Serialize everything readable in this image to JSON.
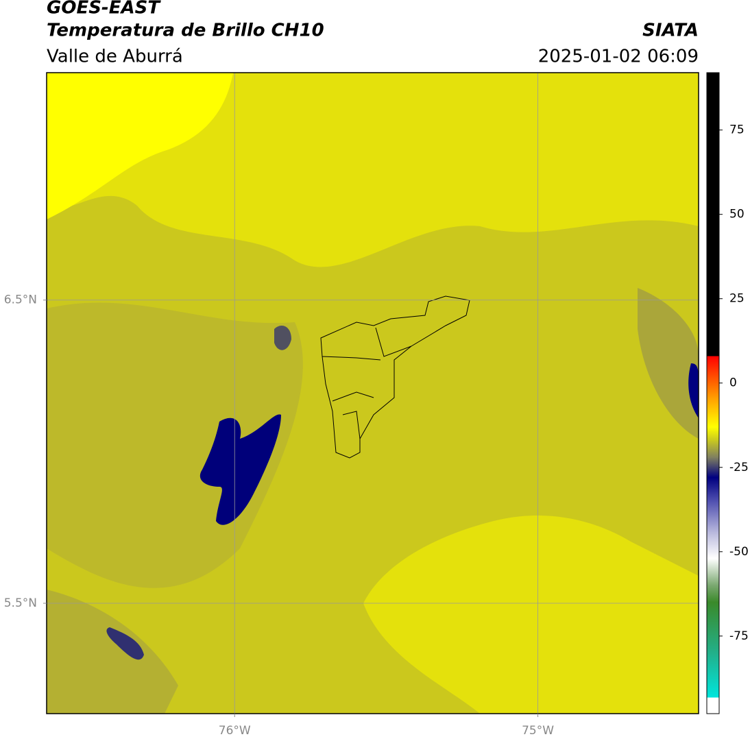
{
  "header": {
    "title": "GOES-EAST",
    "subtitle": "Temperatura de Brillo CH10",
    "source": "SIATA",
    "region": "Valle de Aburrá",
    "datetime": "2025-01-02 06:09"
  },
  "chart_data": {
    "type": "map",
    "xlim": [
      -76.62,
      -74.47
    ],
    "ylim": [
      5.136,
      7.25
    ],
    "xticks": [
      {
        "value": -76,
        "label": "76°W"
      },
      {
        "value": -75,
        "label": "75°W"
      }
    ],
    "yticks": [
      {
        "value": 6.5,
        "label": "6.5°N"
      },
      {
        "value": 5.5,
        "label": "5.5°N"
      }
    ],
    "grid": true,
    "colorbar": {
      "clim": [
        -98,
        92
      ],
      "ticks": [
        75,
        50,
        25,
        0,
        -25,
        -50,
        -75
      ],
      "colormap": [
        {
          "value": -98,
          "color": "#ffffff"
        },
        {
          "value": -93.2,
          "color": "#ffffff"
        },
        {
          "value": -93.2,
          "color": "#00e5dc"
        },
        {
          "value": -80,
          "color": "#22b08a"
        },
        {
          "value": -65,
          "color": "#3a8a2a"
        },
        {
          "value": -60,
          "color": "#7aa870"
        },
        {
          "value": -52,
          "color": "#ffffff"
        },
        {
          "value": -45,
          "color": "#c0c0e0"
        },
        {
          "value": -35,
          "color": "#5050b0"
        },
        {
          "value": -28,
          "color": "#000080"
        },
        {
          "value": -22,
          "color": "#808060"
        },
        {
          "value": -17,
          "color": "#c8c820"
        },
        {
          "value": -13,
          "color": "#ffff00"
        },
        {
          "value": -5,
          "color": "#ffa500"
        },
        {
          "value": 8,
          "color": "#ff0000"
        },
        {
          "value": 8,
          "color": "#000000"
        },
        {
          "value": 92,
          "color": "#000000"
        }
      ]
    }
  }
}
